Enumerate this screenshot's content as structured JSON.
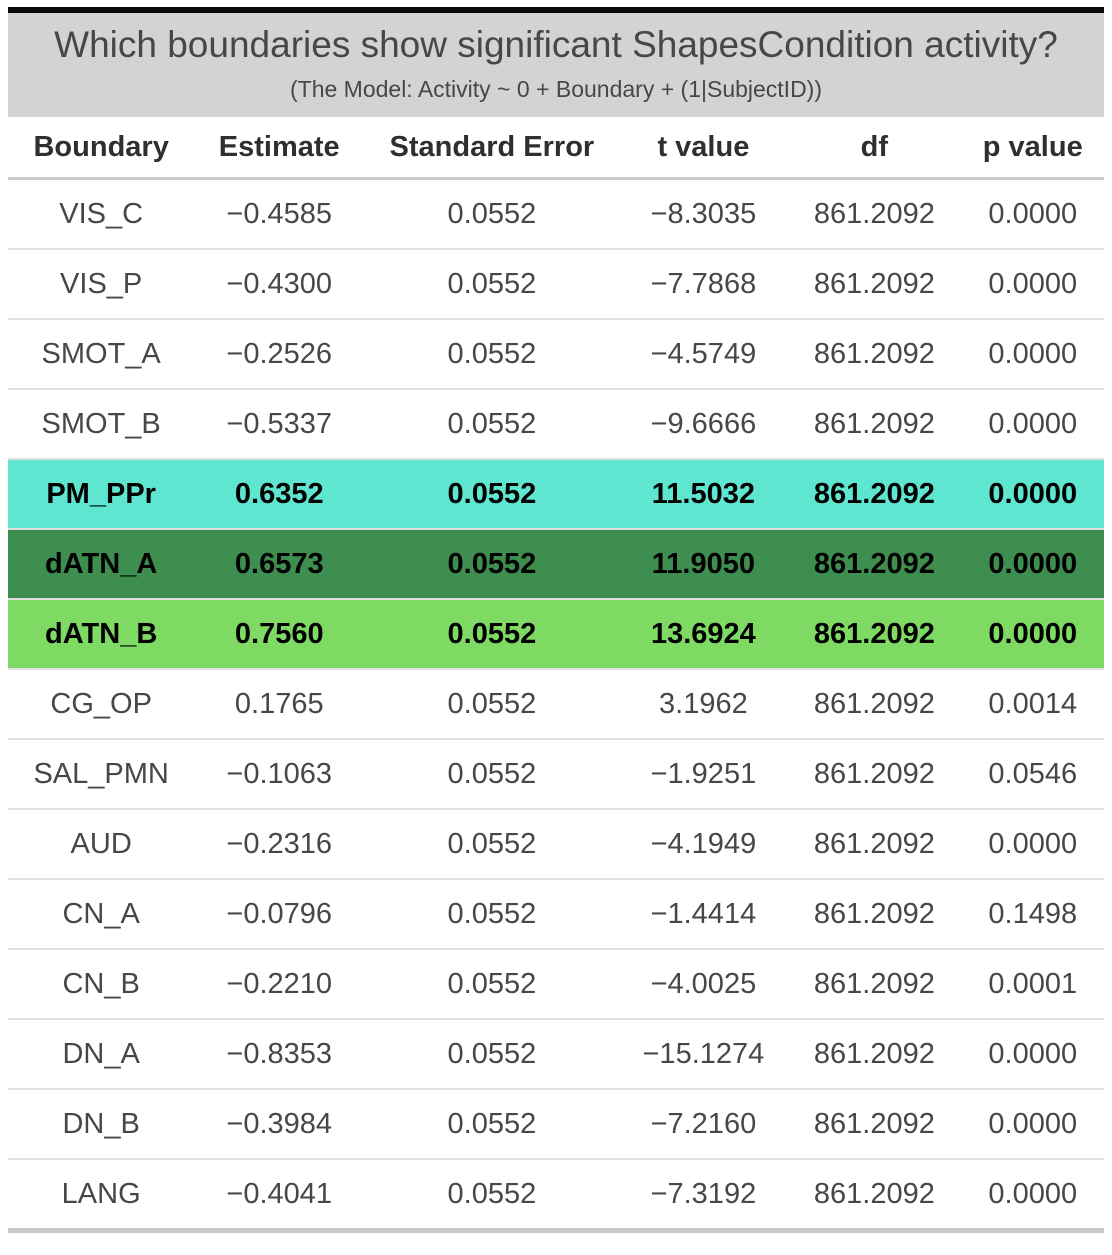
{
  "colors": {
    "header_bg": "#d3d3d3",
    "top_border": "#0b0b0b",
    "turquoise": "#5fe6d0",
    "dark_green": "#3e8e50",
    "light_green": "#7eda63",
    "body_text": "#474747",
    "highlight_text": "#000000"
  },
  "chart_data": {
    "type": "table",
    "title": "Which boundaries show significant ShapesCondition activity?",
    "subtitle": "(The Model: Activity ~ 0 + Boundary + (1|SubjectID))",
    "columns": [
      "Boundary",
      "Estimate",
      "Standard Error",
      "t value",
      "df",
      "p value"
    ],
    "rows": [
      {
        "cells": [
          "VIS_C",
          "−0.4585",
          "0.0552",
          "−8.3035",
          "861.2092",
          "0.0000"
        ],
        "highlight": null
      },
      {
        "cells": [
          "VIS_P",
          "−0.4300",
          "0.0552",
          "−7.7868",
          "861.2092",
          "0.0000"
        ],
        "highlight": null
      },
      {
        "cells": [
          "SMOT_A",
          "−0.2526",
          "0.0552",
          "−4.5749",
          "861.2092",
          "0.0000"
        ],
        "highlight": null
      },
      {
        "cells": [
          "SMOT_B",
          "−0.5337",
          "0.0552",
          "−9.6666",
          "861.2092",
          "0.0000"
        ],
        "highlight": null
      },
      {
        "cells": [
          "PM_PPr",
          "0.6352",
          "0.0552",
          "11.5032",
          "861.2092",
          "0.0000"
        ],
        "highlight": "turquoise"
      },
      {
        "cells": [
          "dATN_A",
          "0.6573",
          "0.0552",
          "11.9050",
          "861.2092",
          "0.0000"
        ],
        "highlight": "dark_green"
      },
      {
        "cells": [
          "dATN_B",
          "0.7560",
          "0.0552",
          "13.6924",
          "861.2092",
          "0.0000"
        ],
        "highlight": "light_green"
      },
      {
        "cells": [
          "CG_OP",
          "0.1765",
          "0.0552",
          "3.1962",
          "861.2092",
          "0.0014"
        ],
        "highlight": null
      },
      {
        "cells": [
          "SAL_PMN",
          "−0.1063",
          "0.0552",
          "−1.9251",
          "861.2092",
          "0.0546"
        ],
        "highlight": null
      },
      {
        "cells": [
          "AUD",
          "−0.2316",
          "0.0552",
          "−4.1949",
          "861.2092",
          "0.0000"
        ],
        "highlight": null
      },
      {
        "cells": [
          "CN_A",
          "−0.0796",
          "0.0552",
          "−1.4414",
          "861.2092",
          "0.1498"
        ],
        "highlight": null
      },
      {
        "cells": [
          "CN_B",
          "−0.2210",
          "0.0552",
          "−4.0025",
          "861.2092",
          "0.0001"
        ],
        "highlight": null
      },
      {
        "cells": [
          "DN_A",
          "−0.8353",
          "0.0552",
          "−15.1274",
          "861.2092",
          "0.0000"
        ],
        "highlight": null
      },
      {
        "cells": [
          "DN_B",
          "−0.3984",
          "0.0552",
          "−7.2160",
          "861.2092",
          "0.0000"
        ],
        "highlight": null
      },
      {
        "cells": [
          "LANG",
          "−0.4041",
          "0.0552",
          "−7.3192",
          "861.2092",
          "0.0000"
        ],
        "highlight": null
      }
    ],
    "highlighted_rows": {
      "PM_PPr": "turquoise",
      "dATN_A": "dark green",
      "dATN_B": "light green"
    },
    "layout_hints": {
      "header_background": "light gray",
      "cell_alignment": "center",
      "highlight_text_style": "bold black"
    }
  }
}
